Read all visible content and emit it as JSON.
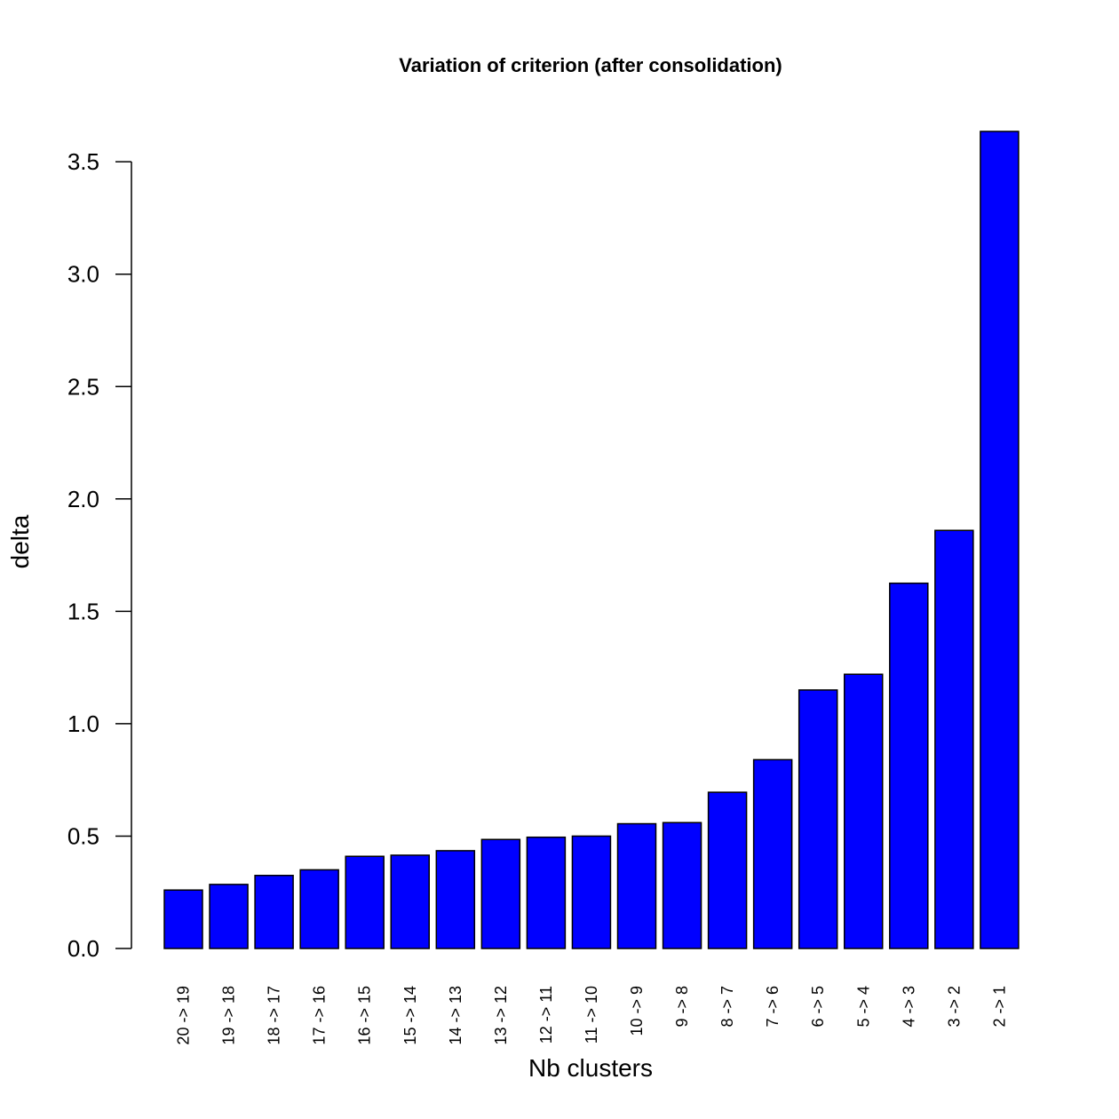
{
  "chart_data": {
    "type": "bar",
    "title": "Variation of criterion (after consolidation)",
    "xlabel": "Nb clusters",
    "ylabel": "delta",
    "categories": [
      "20 -> 19",
      "19 -> 18",
      "18 -> 17",
      "17 -> 16",
      "16 -> 15",
      "15 -> 14",
      "14 -> 13",
      "13 -> 12",
      "12 -> 11",
      "11 -> 10",
      "10 -> 9",
      "9 -> 8",
      "8 -> 7",
      "7 -> 6",
      "6 -> 5",
      "5 -> 4",
      "4 -> 3",
      "3 -> 2",
      "2 -> 1"
    ],
    "values": [
      0.26,
      0.285,
      0.325,
      0.35,
      0.41,
      0.415,
      0.435,
      0.485,
      0.495,
      0.5,
      0.555,
      0.56,
      0.695,
      0.84,
      1.15,
      1.22,
      1.625,
      1.86,
      3.635
    ],
    "yticks": [
      "0.0",
      "0.5",
      "1.0",
      "1.5",
      "2.0",
      "2.5",
      "3.0",
      "3.5"
    ],
    "ylim": [
      0,
      3.7
    ],
    "bar_color": "#0000ff",
    "grid": false,
    "legend": "none"
  }
}
